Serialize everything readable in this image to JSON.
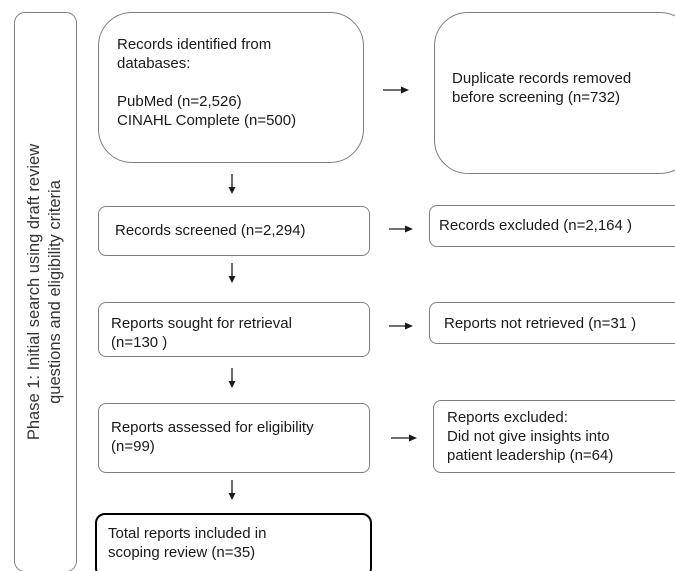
{
  "phase": {
    "label_line1": "Phase 1: Initial search using draft review",
    "label_line2": "questions and eligibility criteria"
  },
  "identification": {
    "records_line1": "Records identified from",
    "records_line2": "databases:",
    "pubmed": "PubMed (n=2,526)",
    "cinahl": "CINAHL Complete (n=500)",
    "duplicates_line1": "Duplicate records removed",
    "duplicates_line2": "before screening (n=732)"
  },
  "screening": {
    "screened": "Records screened (n=2,294)",
    "excluded": "Records excluded (n=2,164 )"
  },
  "retrieval": {
    "sought_line1": "Reports sought for retrieval",
    "sought_line2": "(n=130 )",
    "not_retrieved": "Reports not retrieved (n=31 )"
  },
  "eligibility": {
    "assessed_line1": "Reports assessed for eligibility",
    "assessed_line2": "(n=99)",
    "excluded_line1": "Reports excluded:",
    "excluded_line2": "Did not give insights into",
    "excluded_line3": "patient leadership (n=64)"
  },
  "included": {
    "line1": "Total reports included in",
    "line2": "scoping review (n=35)"
  }
}
